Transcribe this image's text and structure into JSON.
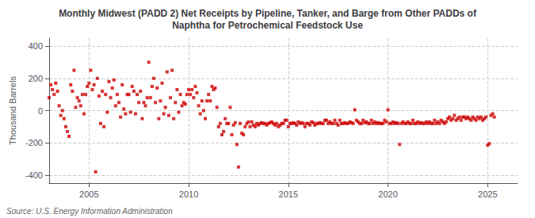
{
  "chart_data": {
    "type": "scatter",
    "title": "Monthly Midwest (PADD 2) Net Receipts by Pipeline, Tanker, and Barge from Other PADDs of\nNaphtha for Petrochemical Feedstock Use",
    "ylabel": "Thousand Barrels",
    "annotation": "Source: U.S. Energy Information Administration",
    "color": "#cc0000",
    "marker": "square",
    "grid": true,
    "xlim": [
      2003.0,
      2026.5
    ],
    "ylim": [
      -450,
      450
    ],
    "yticks": [
      -400,
      -200,
      0,
      200,
      400
    ],
    "xticks": [
      2005,
      2010,
      2015,
      2020,
      2025
    ],
    "x": [
      2003.0,
      2003.083,
      2003.167,
      2003.25,
      2003.333,
      2003.417,
      2003.5,
      2003.583,
      2003.667,
      2003.75,
      2003.833,
      2003.917,
      2004.0,
      2004.083,
      2004.167,
      2004.25,
      2004.333,
      2004.417,
      2004.5,
      2004.583,
      2004.667,
      2004.75,
      2004.833,
      2004.917,
      2005.0,
      2005.083,
      2005.167,
      2005.25,
      2005.333,
      2005.417,
      2005.5,
      2005.583,
      2005.667,
      2005.75,
      2005.833,
      2005.917,
      2006.0,
      2006.083,
      2006.167,
      2006.25,
      2006.333,
      2006.417,
      2006.5,
      2006.583,
      2006.667,
      2006.75,
      2006.833,
      2006.917,
      2007.0,
      2007.083,
      2007.167,
      2007.25,
      2007.333,
      2007.417,
      2007.5,
      2007.583,
      2007.667,
      2007.75,
      2007.833,
      2007.917,
      2008.0,
      2008.083,
      2008.167,
      2008.25,
      2008.333,
      2008.417,
      2008.5,
      2008.583,
      2008.667,
      2008.75,
      2008.833,
      2008.917,
      2009.0,
      2009.083,
      2009.167,
      2009.25,
      2009.333,
      2009.417,
      2009.5,
      2009.583,
      2009.667,
      2009.75,
      2009.833,
      2009.917,
      2010.0,
      2010.083,
      2010.167,
      2010.25,
      2010.333,
      2010.417,
      2010.5,
      2010.583,
      2010.667,
      2010.75,
      2010.833,
      2010.917,
      2011.0,
      2011.083,
      2011.167,
      2011.25,
      2011.333,
      2011.417,
      2011.5,
      2011.583,
      2011.667,
      2011.75,
      2011.833,
      2011.917,
      2012.0,
      2012.083,
      2012.167,
      2012.25,
      2012.333,
      2012.417,
      2012.5,
      2012.583,
      2012.667,
      2012.75,
      2012.833,
      2012.917,
      2013.0,
      2013.083,
      2013.167,
      2013.25,
      2013.333,
      2013.417,
      2013.5,
      2013.583,
      2013.667,
      2013.75,
      2013.833,
      2013.917,
      2014.0,
      2014.083,
      2014.167,
      2014.25,
      2014.333,
      2014.417,
      2014.5,
      2014.583,
      2014.667,
      2014.75,
      2014.833,
      2014.917,
      2015.0,
      2015.083,
      2015.167,
      2015.25,
      2015.333,
      2015.417,
      2015.5,
      2015.583,
      2015.667,
      2015.75,
      2015.833,
      2015.917,
      2016.0,
      2016.083,
      2016.167,
      2016.25,
      2016.333,
      2016.417,
      2016.5,
      2016.583,
      2016.667,
      2016.75,
      2016.833,
      2016.917,
      2017.0,
      2017.083,
      2017.167,
      2017.25,
      2017.333,
      2017.417,
      2017.5,
      2017.583,
      2017.667,
      2017.75,
      2017.833,
      2017.917,
      2018.0,
      2018.083,
      2018.167,
      2018.25,
      2018.333,
      2018.417,
      2018.5,
      2018.583,
      2018.667,
      2018.75,
      2018.833,
      2018.917,
      2019.0,
      2019.083,
      2019.167,
      2019.25,
      2019.333,
      2019.417,
      2019.5,
      2019.583,
      2019.667,
      2019.75,
      2019.833,
      2019.917,
      2020.0,
      2020.083,
      2020.167,
      2020.25,
      2020.333,
      2020.417,
      2020.5,
      2020.583,
      2020.667,
      2020.75,
      2020.833,
      2020.917,
      2021.0,
      2021.083,
      2021.167,
      2021.25,
      2021.333,
      2021.417,
      2021.5,
      2021.583,
      2021.667,
      2021.75,
      2021.833,
      2021.917,
      2022.0,
      2022.083,
      2022.167,
      2022.25,
      2022.333,
      2022.417,
      2022.5,
      2022.583,
      2022.667,
      2022.75,
      2022.833,
      2022.917,
      2023.0,
      2023.083,
      2023.167,
      2023.25,
      2023.333,
      2023.417,
      2023.5,
      2023.583,
      2023.667,
      2023.75,
      2023.833,
      2023.917,
      2024.0,
      2024.083,
      2024.167,
      2024.25,
      2024.333,
      2024.417,
      2024.5,
      2024.583,
      2024.667,
      2024.75,
      2024.833,
      2024.917,
      2025.0,
      2025.083,
      2025.167,
      2025.25,
      2025.333
    ],
    "values": [
      80,
      160,
      130,
      100,
      170,
      120,
      30,
      -30,
      0,
      -50,
      -100,
      -130,
      -160,
      160,
      120,
      250,
      20,
      80,
      60,
      30,
      100,
      -20,
      100,
      150,
      170,
      250,
      130,
      160,
      -380,
      200,
      90,
      -80,
      120,
      -100,
      100,
      -10,
      180,
      80,
      140,
      190,
      30,
      100,
      50,
      -40,
      160,
      10,
      -20,
      100,
      100,
      -10,
      150,
      120,
      -20,
      100,
      50,
      120,
      -50,
      50,
      30,
      80,
      300,
      80,
      150,
      200,
      50,
      140,
      -50,
      60,
      170,
      -20,
      20,
      240,
      -30,
      80,
      250,
      -50,
      50,
      130,
      -10,
      100,
      30,
      50,
      40,
      100,
      130,
      100,
      130,
      80,
      150,
      110,
      30,
      -20,
      60,
      0,
      -50,
      60,
      100,
      60,
      150,
      130,
      140,
      20,
      -100,
      -80,
      -150,
      -130,
      -50,
      -80,
      -80,
      20,
      -150,
      -90,
      -75,
      -210,
      -350,
      -80,
      -140,
      -150,
      -100,
      -80,
      -70,
      -100,
      -70,
      -90,
      -100,
      -80,
      -90,
      -80,
      -75,
      -80,
      -80,
      -90,
      -80,
      -75,
      -70,
      -80,
      -90,
      -80,
      -100,
      -90,
      -80,
      -80,
      -60,
      -60,
      -100,
      -80,
      -80,
      -75,
      -80,
      -90,
      -70,
      -80,
      -75,
      -80,
      -100,
      -80,
      -80,
      -90,
      -70,
      -75,
      -90,
      -80,
      -80,
      -75,
      -80,
      -80,
      -60,
      -60,
      -80,
      -70,
      -80,
      -80,
      -60,
      -80,
      -90,
      -60,
      -80,
      -80,
      -75,
      -80,
      -80,
      -70,
      -75,
      -80,
      5,
      -60,
      -70,
      -80,
      -80,
      -60,
      -75,
      -70,
      -80,
      -80,
      -60,
      -80,
      -70,
      -80,
      -75,
      -80,
      -80,
      -80,
      -60,
      -70,
      5,
      -80,
      -80,
      -70,
      -80,
      -75,
      -80,
      -210,
      -80,
      -70,
      -80,
      -80,
      -70,
      -80,
      -80,
      -60,
      -80,
      -80,
      -70,
      -80,
      -75,
      -80,
      -80,
      -70,
      -80,
      -70,
      -80,
      -80,
      -60,
      -80,
      -70,
      -80,
      -60,
      -70,
      -80,
      -70,
      -50,
      -40,
      -60,
      -50,
      -30,
      -60,
      -50,
      -40,
      -60,
      -40,
      -40,
      -50,
      -40,
      -50,
      -60,
      -40,
      -50,
      -60,
      -40,
      -50,
      -40,
      -60,
      -50,
      -40,
      -215,
      -205,
      -30,
      -20,
      -40
    ]
  }
}
